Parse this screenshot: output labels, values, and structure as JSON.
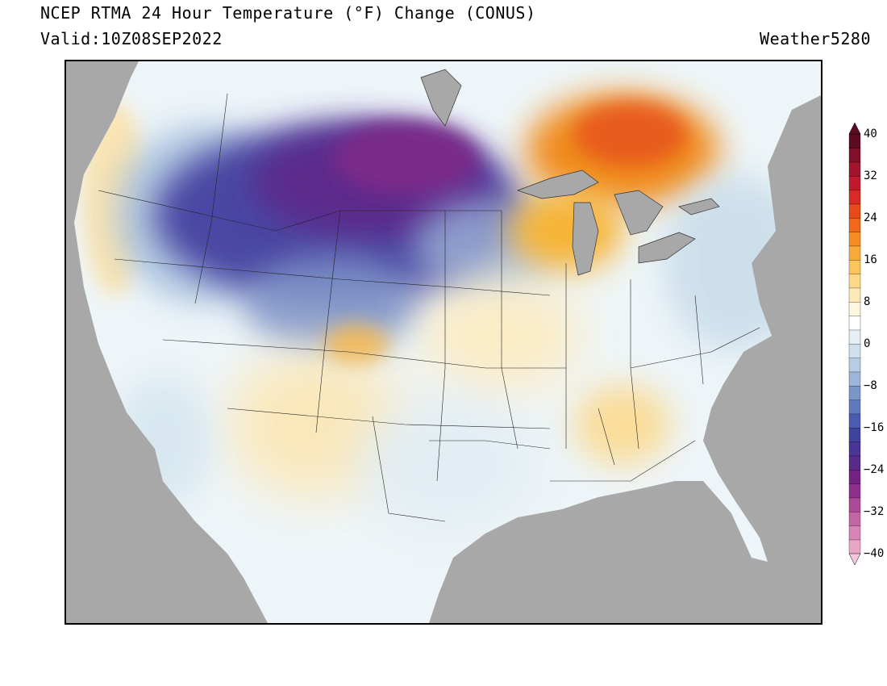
{
  "header": {
    "title": "NCEP RTMA 24 Hour Temperature (°F) Change (CONUS)",
    "valid": "Valid:10Z08SEP2022",
    "credit": "Weather5280"
  },
  "map": {
    "type": "temperature-change-map",
    "region": "CONUS",
    "land_base_color": "#f2f7fa",
    "water_color": "#a8a8a8",
    "anomalies": [
      {
        "area": "northern plains / Montana / Dakotas",
        "change_f": -30,
        "color": "#5a2f8f"
      },
      {
        "area": "Idaho / Wyoming / Colorado",
        "change_f": -22,
        "color": "#4a4aa6"
      },
      {
        "area": "Pacific Northwest interior",
        "change_f": -12,
        "color": "#8fb0d6"
      },
      {
        "area": "Ontario / upper Great Lakes",
        "change_f": 18,
        "color": "#f08c1e"
      },
      {
        "area": "Wisconsin / Michigan",
        "change_f": 12,
        "color": "#f7b435"
      },
      {
        "area": "Southeast / Gulf states",
        "change_f": 4,
        "color": "#fde3a8"
      },
      {
        "area": "Southwest",
        "change_f": 3,
        "color": "#fce9bd"
      }
    ]
  },
  "legend": {
    "min": -40,
    "max": 40,
    "step": 4,
    "labels": [
      "40",
      "32",
      "24",
      "16",
      "8",
      "0",
      "−8",
      "−16",
      "−24",
      "−32",
      "−40"
    ],
    "colors": [
      "#e8a6c6",
      "#d884b4",
      "#c466a6",
      "#ac4a98",
      "#8f2f8c",
      "#742384",
      "#5a2a8a",
      "#4a3496",
      "#3f43a0",
      "#4a5cb0",
      "#6079be",
      "#7b97ca",
      "#9bb6d8",
      "#b6cde3",
      "#cfe0ec",
      "#e4eef5",
      "#ffffff",
      "#fff6e0",
      "#fde9b5",
      "#fcd887",
      "#fbc45c",
      "#f9a93a",
      "#f68a23",
      "#f0681a",
      "#e64a1a",
      "#d92a25",
      "#c01a2c",
      "#a2142e",
      "#80102a",
      "#5e0b22"
    ],
    "arrow_top_color": "#5e0b22",
    "arrow_bottom_color": "#f3c8dc"
  }
}
